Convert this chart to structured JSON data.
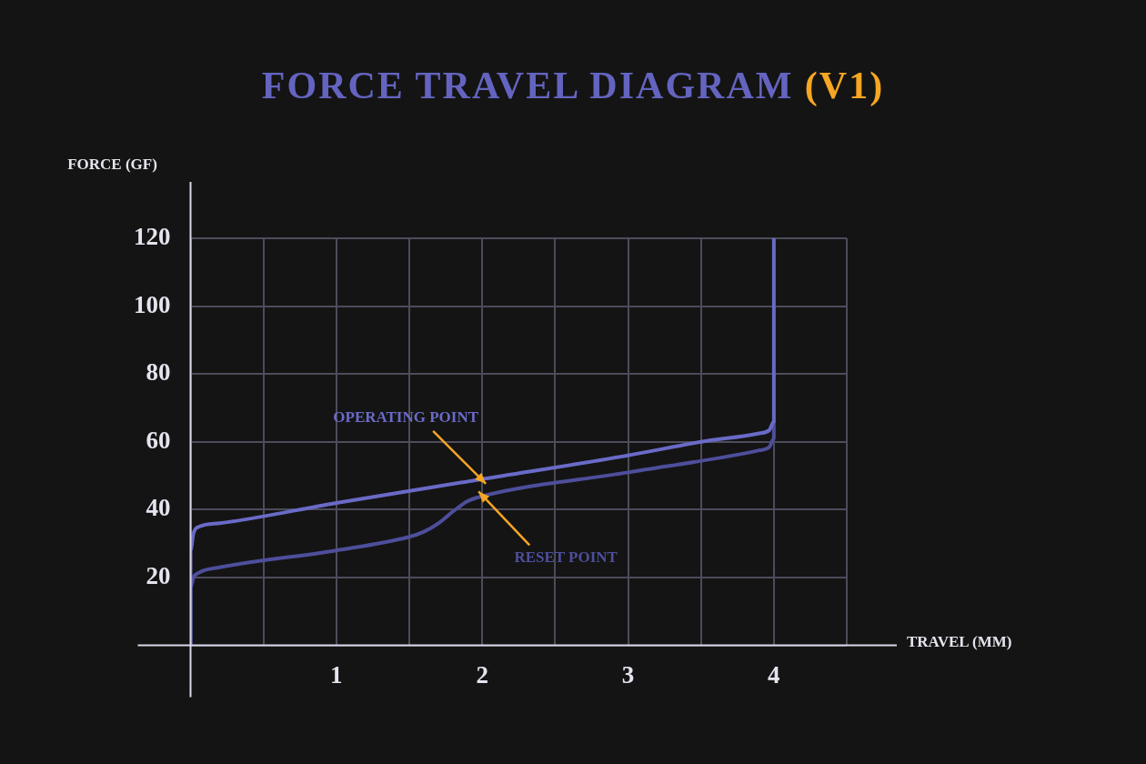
{
  "chart_data": {
    "type": "line",
    "title": "FORCE TRAVEL DIAGRAM (V1)",
    "xlabel": "TRAVEL (MM)",
    "ylabel": "FORCE (GF)",
    "xlim": [
      0,
      4.5
    ],
    "ylim": [
      0,
      120
    ],
    "xticks": [
      {
        "value": 0,
        "label": null
      },
      {
        "value": 0.5,
        "label": null
      },
      1,
      {
        "value": 1.5,
        "label": null
      },
      2,
      {
        "value": 2.5,
        "label": null
      },
      3,
      {
        "value": 3.5,
        "label": null
      },
      4,
      {
        "value": 4.5,
        "label": null
      }
    ],
    "yticks": [
      {
        "value": 0,
        "label": null
      },
      20,
      40,
      60,
      80,
      100,
      120
    ],
    "grid": true,
    "legend": false,
    "marker": "none",
    "line_style": "solid",
    "series": [
      {
        "color": "#6a6ac8",
        "x": [
          0,
          0,
          0.02,
          0.06,
          0.2,
          1,
          2,
          3,
          3.5,
          3.9,
          3.97,
          4,
          4,
          4
        ],
        "values": [
          0,
          28,
          33,
          35,
          36,
          42,
          49,
          56,
          60,
          62.5,
          63.5,
          66,
          80,
          120
        ]
      },
      {
        "color": "#4e4e9c",
        "x": [
          0,
          0,
          0.02,
          0.06,
          0.2,
          1,
          1.5,
          1.6,
          1.7,
          1.8,
          1.9,
          2,
          3,
          3.9,
          3.97,
          4,
          4
        ],
        "values": [
          0,
          17,
          20,
          21.5,
          23,
          28,
          32,
          33.5,
          36,
          39.5,
          42.5,
          44,
          51,
          57.5,
          58.5,
          61,
          66
        ]
      }
    ],
    "annotations": [
      {
        "text": "OPERATING POINT",
        "x": 2,
        "y": 49
      },
      {
        "text": "RESET POINT",
        "x": 2,
        "y": 44
      }
    ]
  }
}
